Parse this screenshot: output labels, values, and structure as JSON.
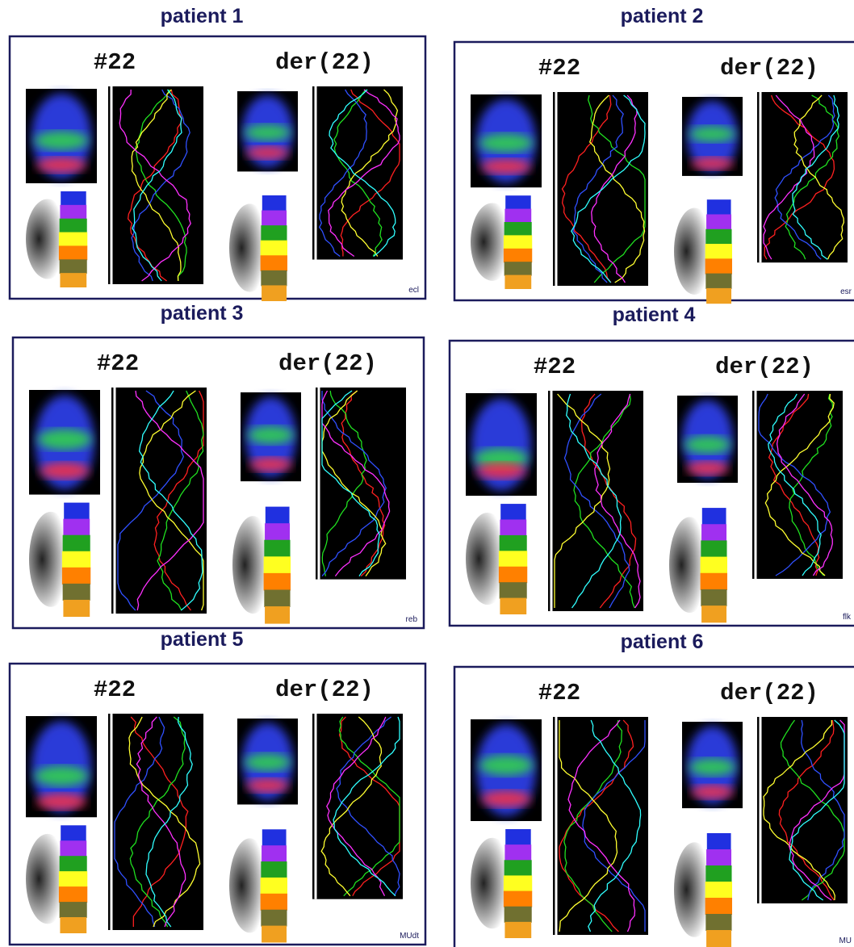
{
  "panels": [
    {
      "title": "patient 1",
      "left_label": "#22",
      "right_label": "der(22)",
      "tag": "ecl"
    },
    {
      "title": "patient 2",
      "left_label": "#22",
      "right_label": "der(22)",
      "tag": "esr"
    },
    {
      "title": "patient 3",
      "left_label": "#22",
      "right_label": "der(22)",
      "tag": "reb"
    },
    {
      "title": "patient 4",
      "left_label": "#22",
      "right_label": "der(22)",
      "tag": "flk"
    },
    {
      "title": "patient 5",
      "left_label": "#22",
      "right_label": "der(22)",
      "tag": "MUdt"
    },
    {
      "title": "patient 6",
      "left_label": "#22",
      "right_label": "der(22)",
      "tag": "MU"
    }
  ]
}
